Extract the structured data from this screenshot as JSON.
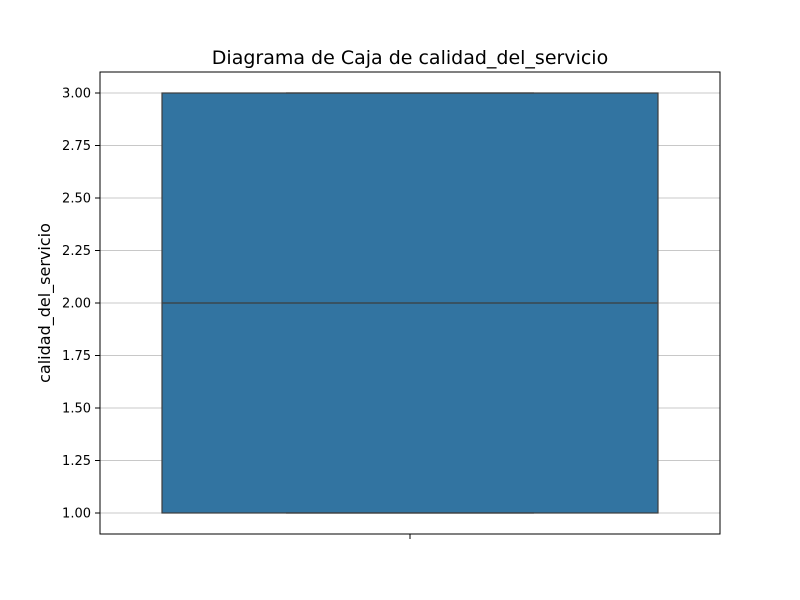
{
  "chart_data": {
    "type": "box",
    "title": "Diagrama de Caja de calidad_del_servicio",
    "xlabel": "",
    "ylabel": "calidad_del_servicio",
    "ylim": [
      0.9,
      3.1
    ],
    "y_ticks": [
      "1.00",
      "1.25",
      "1.50",
      "1.75",
      "2.00",
      "2.25",
      "2.50",
      "2.75",
      "3.00"
    ],
    "grid": "horizontal",
    "box": {
      "min": 1.0,
      "q1": 1.0,
      "median": 2.0,
      "q3": 3.0,
      "max": 3.0
    },
    "colors": {
      "box_fill": "#3274a1",
      "box_edge": "#3d3d3d",
      "grid": "#c8c8c8"
    }
  }
}
